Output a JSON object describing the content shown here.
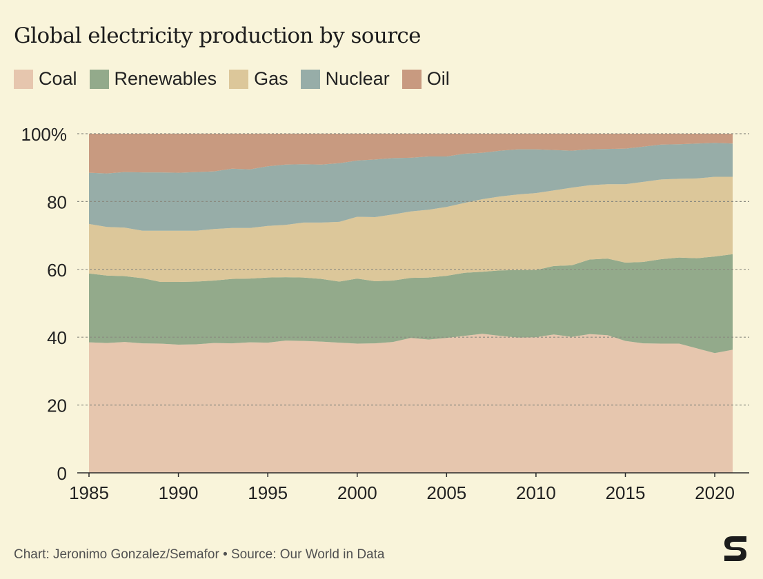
{
  "title": "Global electricity production by source",
  "legend": {
    "coal": {
      "label": "Coal",
      "color": "#e6c6ae"
    },
    "renewables": {
      "label": "Renewables",
      "color": "#93aa8b"
    },
    "gas": {
      "label": "Gas",
      "color": "#dcc79a"
    },
    "nuclear": {
      "label": "Nuclear",
      "color": "#97ada8"
    },
    "oil": {
      "label": "Oil",
      "color": "#c89a80"
    }
  },
  "footer": "Chart: Jeronimo Gonzalez/Semafor • Source: Our World in Data",
  "chart_data": {
    "type": "area",
    "stacked": true,
    "title": "Global electricity production by source",
    "xlabel": "",
    "ylabel": "",
    "ylim": [
      0,
      100
    ],
    "y_ticks": [
      "0",
      "20",
      "40",
      "60",
      "80",
      "100%"
    ],
    "x_ticks": [
      1985,
      1990,
      1995,
      2000,
      2005,
      2010,
      2015,
      2020
    ],
    "x": [
      1985,
      1986,
      1987,
      1988,
      1989,
      1990,
      1991,
      1992,
      1993,
      1994,
      1995,
      1996,
      1997,
      1998,
      1999,
      2000,
      2001,
      2002,
      2003,
      2004,
      2005,
      2006,
      2007,
      2008,
      2009,
      2010,
      2011,
      2012,
      2013,
      2014,
      2015,
      2016,
      2017,
      2018,
      2019,
      2020,
      2021
    ],
    "series": [
      {
        "name": "Coal",
        "color": "#e6c6ae",
        "values": [
          38.5,
          38.3,
          38.6,
          38.2,
          38.1,
          37.8,
          37.9,
          38.3,
          38.2,
          38.5,
          38.4,
          39.0,
          38.9,
          38.7,
          38.4,
          38.1,
          38.2,
          38.6,
          39.8,
          39.3,
          39.8,
          40.4,
          41.0,
          40.4,
          39.9,
          40.0,
          40.8,
          40.1,
          40.9,
          40.6,
          38.9,
          38.2,
          38.1,
          38.1,
          36.7,
          35.3,
          36.3
        ]
      },
      {
        "name": "Renewables",
        "color": "#93aa8b",
        "values": [
          20.3,
          19.9,
          19.4,
          19.2,
          18.2,
          18.5,
          18.5,
          18.4,
          19.0,
          18.8,
          19.2,
          18.7,
          18.7,
          18.5,
          18.0,
          19.2,
          18.3,
          18.1,
          17.7,
          18.3,
          18.3,
          18.6,
          18.3,
          19.3,
          19.9,
          19.8,
          20.2,
          21.1,
          22.0,
          22.6,
          23.1,
          24.0,
          24.9,
          25.4,
          26.6,
          28.5,
          28.2
        ]
      },
      {
        "name": "Gas",
        "color": "#dcc79a",
        "values": [
          14.6,
          14.3,
          14.3,
          14.0,
          15.1,
          15.1,
          15.0,
          15.2,
          15.0,
          14.9,
          15.2,
          15.4,
          16.2,
          16.6,
          17.6,
          18.2,
          18.9,
          19.5,
          19.6,
          20.0,
          20.3,
          20.6,
          21.4,
          21.8,
          22.3,
          22.7,
          22.3,
          22.9,
          21.9,
          21.9,
          23.1,
          23.6,
          23.5,
          23.2,
          23.5,
          23.5,
          22.8
        ]
      },
      {
        "name": "Nuclear",
        "color": "#97ada8",
        "values": [
          15.1,
          15.8,
          16.4,
          17.2,
          17.2,
          17.1,
          17.3,
          17.0,
          17.5,
          17.3,
          17.6,
          17.8,
          17.2,
          17.1,
          17.3,
          16.6,
          17.0,
          16.6,
          15.8,
          15.7,
          14.9,
          14.5,
          13.7,
          13.5,
          13.3,
          12.9,
          11.9,
          10.9,
          10.6,
          10.4,
          10.5,
          10.4,
          10.3,
          10.2,
          10.3,
          10.0,
          9.8
        ]
      },
      {
        "name": "Oil",
        "color": "#c89a80",
        "values": [
          11.5,
          11.7,
          11.3,
          11.4,
          11.4,
          11.5,
          11.3,
          11.1,
          10.3,
          10.5,
          9.6,
          9.1,
          9.0,
          9.1,
          8.7,
          7.9,
          7.6,
          7.2,
          7.1,
          6.7,
          6.7,
          5.9,
          5.6,
          5.0,
          4.6,
          4.6,
          4.8,
          5.0,
          4.6,
          4.5,
          4.4,
          3.8,
          3.2,
          3.1,
          2.9,
          2.7,
          2.9
        ]
      }
    ]
  }
}
